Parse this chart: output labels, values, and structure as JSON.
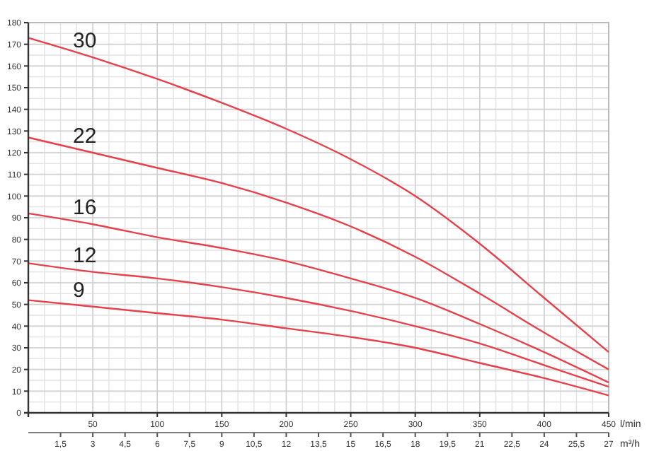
{
  "chart_data": {
    "type": "line",
    "xlabel": "l/min",
    "x2label": "m³/h",
    "x": [
      0,
      50,
      100,
      150,
      200,
      250,
      300,
      350,
      400,
      450
    ],
    "series": [
      {
        "name": "30",
        "color": "#e8404a",
        "values": [
          173,
          164,
          154,
          143,
          131,
          117,
          100,
          78,
          53,
          28
        ]
      },
      {
        "name": "22",
        "color": "#e8404a",
        "values": [
          127,
          120,
          113,
          106,
          97,
          86,
          72,
          55,
          37,
          20
        ]
      },
      {
        "name": "16",
        "color": "#e8404a",
        "values": [
          92,
          87,
          81,
          76,
          70,
          62,
          53,
          41,
          28,
          14
        ]
      },
      {
        "name": "12",
        "color": "#e8404a",
        "values": [
          69,
          65,
          62,
          58,
          53,
          47,
          40,
          32,
          22,
          12
        ]
      },
      {
        "name": "9",
        "color": "#e8404a",
        "values": [
          52,
          49,
          46,
          43,
          39,
          35,
          30,
          23,
          16,
          8
        ]
      }
    ],
    "xlim": [
      0,
      450
    ],
    "xticks": [
      50,
      100,
      150,
      200,
      250,
      300,
      350,
      400,
      450
    ],
    "x2lim": [
      0,
      27
    ],
    "x2ticks": [
      {
        "value": 1.5,
        "label": "1,5"
      },
      3,
      {
        "value": 4.5,
        "label": "4,5"
      },
      6,
      {
        "value": 7.5,
        "label": "7,5"
      },
      9,
      {
        "value": 10.5,
        "label": "10,5"
      },
      12,
      {
        "value": 13.5,
        "label": "13,5"
      },
      15,
      {
        "value": 16.5,
        "label": "16,5"
      },
      18,
      {
        "value": 19.5,
        "label": "19,5"
      },
      21,
      {
        "value": 22.5,
        "label": "22,5"
      },
      24,
      {
        "value": 25.5,
        "label": "25,5"
      },
      27
    ],
    "ylim": [
      0,
      180
    ],
    "yticks": [
      0,
      10,
      20,
      30,
      40,
      50,
      60,
      70,
      80,
      90,
      100,
      110,
      120,
      130,
      140,
      150,
      160,
      170,
      180
    ],
    "grid": true,
    "marker": "none",
    "line_style": "solid"
  }
}
